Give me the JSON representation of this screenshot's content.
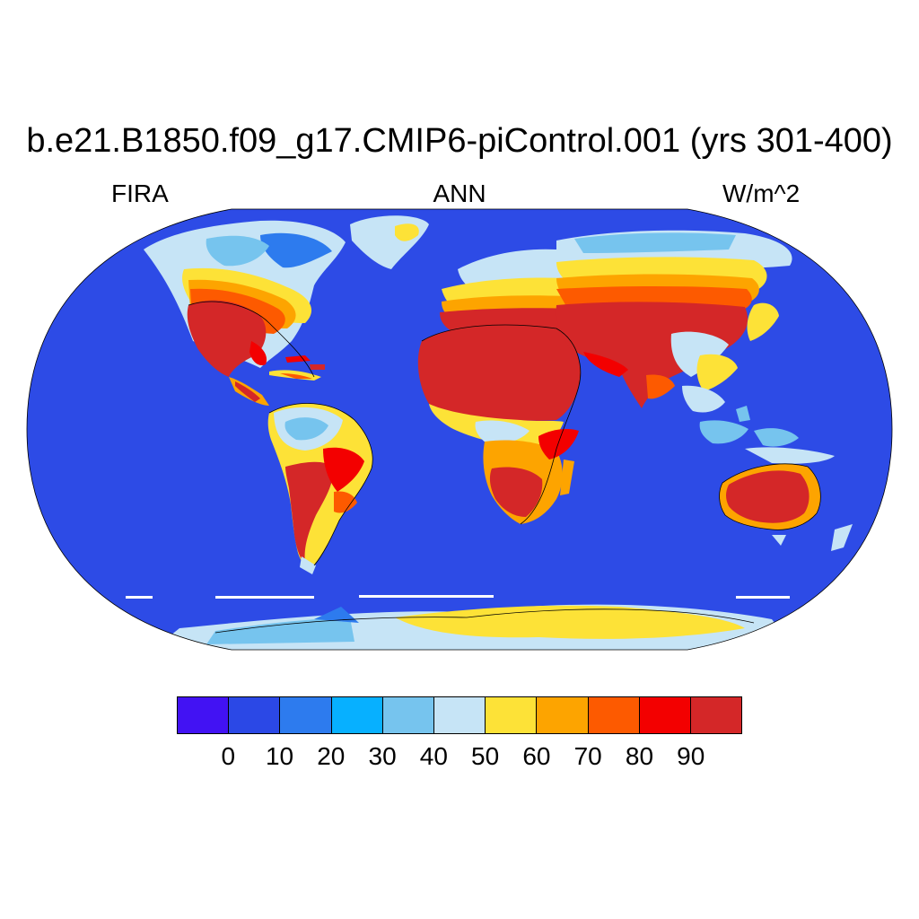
{
  "title": "b.e21.B1850.f09_g17.CMIP6-piControl.001 (yrs 301-400)",
  "subtitle_left": "FIRA",
  "subtitle_center": "ANN",
  "subtitle_right": "W/m^2",
  "colorbar": {
    "colors": [
      "#4212f3",
      "#2b48e6",
      "#2d7bee",
      "#07b0ff",
      "#76c4ee",
      "#c6e4f6",
      "#fde237",
      "#fda400",
      "#fd5a00",
      "#f30000",
      "#d42728"
    ],
    "labels": [
      "0",
      "10",
      "20",
      "30",
      "40",
      "50",
      "60",
      "70",
      "80",
      "90"
    ]
  },
  "map": {
    "projection": "robinson",
    "ocean_color": "#2d4be6",
    "coastline_color": "#000000"
  }
}
